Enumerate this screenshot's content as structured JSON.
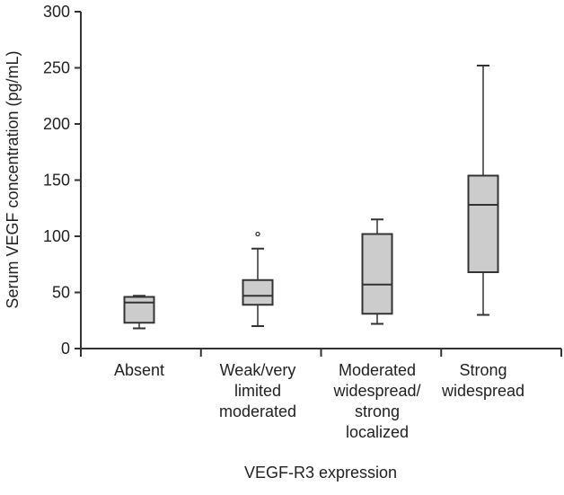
{
  "chart_data": {
    "type": "boxplot",
    "title": "",
    "xlabel": "VEGF-R3 expression",
    "ylabel": "Serum VEGF concentration (pg/mL)",
    "ylim": [
      0,
      300
    ],
    "yticks": [
      0,
      50,
      100,
      150,
      200,
      250,
      300
    ],
    "grid": false,
    "box_color": "#cccccc",
    "line_color": "#333333",
    "categories": [
      {
        "label": [
          "Absent"
        ],
        "min": 18,
        "q1": 23,
        "median": 41,
        "q3": 46,
        "max": 47,
        "outliers": []
      },
      {
        "label": [
          "Weak/very",
          "limited",
          "moderated"
        ],
        "min": 20,
        "q1": 39,
        "median": 47,
        "q3": 61,
        "max": 89,
        "outliers": [
          102
        ]
      },
      {
        "label": [
          "Moderated",
          "widespread/",
          "strong",
          "localized"
        ],
        "min": 22,
        "q1": 31,
        "median": 57,
        "q3": 102,
        "max": 115,
        "outliers": []
      },
      {
        "label": [
          "Strong",
          "widespread"
        ],
        "min": 30,
        "q1": 68,
        "median": 128,
        "q3": 154,
        "max": 252,
        "outliers": []
      }
    ]
  }
}
